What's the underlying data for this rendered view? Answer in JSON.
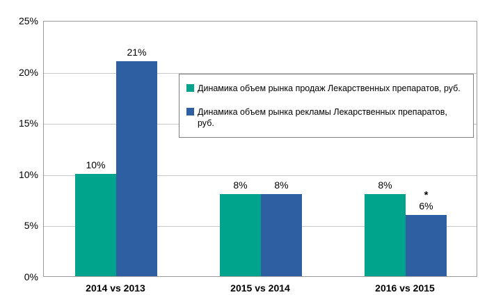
{
  "chart_data": {
    "type": "bar",
    "title": "",
    "categories": [
      "2014 vs 2013",
      "2015 vs 2014",
      "2016 vs 2015"
    ],
    "series": [
      {
        "name": "Динамика объем рынка продаж Лекарственных препаратов, руб.",
        "color": "#00A38B",
        "values": [
          10,
          8,
          8
        ],
        "labels": [
          "10%",
          "8%",
          "8%"
        ],
        "annotations": [
          "",
          "",
          ""
        ]
      },
      {
        "name": "Динамика объем рынка рекламы Лекарственных препаратов, руб.",
        "color": "#2E5FA3",
        "values": [
          21,
          8,
          6
        ],
        "labels": [
          "21%",
          "8%",
          "6%"
        ],
        "annotations": [
          "",
          "",
          "*"
        ]
      }
    ],
    "ylim": [
      0,
      25
    ],
    "yticks": [
      {
        "value": 0,
        "label": "0%"
      },
      {
        "value": 5,
        "label": "5%"
      },
      {
        "value": 10,
        "label": "10%"
      },
      {
        "value": 15,
        "label": "15%"
      },
      {
        "value": 20,
        "label": "20%"
      },
      {
        "value": 25,
        "label": "25%"
      }
    ],
    "grid": true,
    "legend_position": "inside-top-right",
    "xlabel": "",
    "ylabel": ""
  },
  "colors": {
    "grid": "#C9C9C9",
    "plot_border": "#9B9B9B",
    "legend_border": "#808080",
    "text": "#000000"
  }
}
